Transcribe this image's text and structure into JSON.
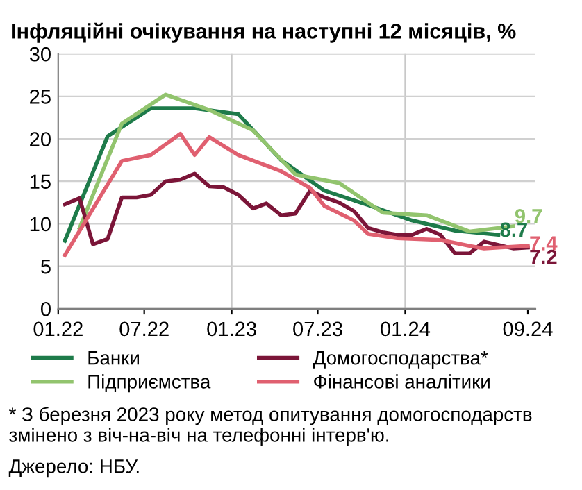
{
  "chart_data": {
    "type": "line",
    "title": "Інфляційні очікування на наступні 12 місяців, %",
    "xlim": [
      "2022-01-01",
      "2024-10-01"
    ],
    "xticks": [
      {
        "value": "2022-01-01",
        "label": "01.22"
      },
      {
        "value": "2022-07-01",
        "label": "07.22"
      },
      {
        "value": "2023-01-01",
        "label": "01.23"
      },
      {
        "value": "2023-07-01",
        "label": "07.23"
      },
      {
        "value": "2024-01-01",
        "label": "01.24"
      },
      {
        "value": "2024-09-15",
        "label": "09.24"
      }
    ],
    "ylim": [
      0,
      30
    ],
    "yticks": [
      0,
      5,
      10,
      15,
      20,
      25,
      30
    ],
    "grid": "y",
    "legend": "bottom",
    "marker": "none",
    "line_style": "solid",
    "ref_lines": [
      {
        "axis": "x",
        "value": "2023-01-01",
        "color": "#c8c8c8"
      },
      {
        "axis": "x",
        "value": "2024-01-01",
        "color": "#c8c8c8"
      }
    ],
    "series": [
      {
        "name": "Банки",
        "color": "#1e7b4a",
        "x": [
          "2022-01-15",
          "2022-04-15",
          "2022-07-15",
          "2022-10-15",
          "2023-01-15",
          "2023-04-15",
          "2023-07-15",
          "2023-10-15",
          "2024-01-15",
          "2024-04-15",
          "2024-07-15"
        ],
        "values": [
          8.0,
          20.3,
          23.6,
          23.6,
          22.9,
          17.5,
          13.9,
          12.2,
          10.4,
          9.2,
          8.7
        ]
      },
      {
        "name": "Підприємства",
        "color": "#92c46e",
        "x": [
          "2022-02-15",
          "2022-05-15",
          "2022-08-15",
          "2022-11-15",
          "2023-02-15",
          "2023-05-15",
          "2023-08-15",
          "2023-11-15",
          "2024-02-15",
          "2024-05-15",
          "2024-08-15"
        ],
        "values": [
          9.5,
          21.8,
          25.2,
          23.4,
          21.0,
          15.8,
          14.8,
          11.3,
          11.0,
          9.1,
          9.7
        ]
      },
      {
        "name": "Домогосподарства*",
        "color": "#7b1538",
        "x": [
          "2022-01-15",
          "2022-02-15",
          "2022-03-15",
          "2022-04-15",
          "2022-05-15",
          "2022-06-15",
          "2022-07-15",
          "2022-08-15",
          "2022-09-15",
          "2022-10-15",
          "2022-11-15",
          "2022-12-15",
          "2023-01-15",
          "2023-02-15",
          "2023-03-15",
          "2023-04-15",
          "2023-05-15",
          "2023-06-15",
          "2023-07-15",
          "2023-08-15",
          "2023-09-15",
          "2023-10-15",
          "2023-11-15",
          "2023-12-15",
          "2024-01-15",
          "2024-02-15",
          "2024-03-15",
          "2024-04-15",
          "2024-05-15",
          "2024-06-15",
          "2024-07-15",
          "2024-08-15",
          "2024-09-15"
        ],
        "values": [
          12.3,
          13.0,
          7.6,
          8.2,
          13.1,
          13.1,
          13.4,
          15.0,
          15.2,
          15.9,
          14.4,
          14.3,
          13.4,
          11.8,
          12.4,
          11.0,
          11.2,
          13.9,
          13.1,
          12.5,
          11.5,
          9.5,
          9.0,
          8.7,
          8.7,
          9.4,
          8.7,
          6.5,
          6.5,
          7.9,
          7.5,
          7.1,
          7.2
        ]
      },
      {
        "name": "Фінансові аналітики",
        "color": "#e06070",
        "x": [
          "2022-01-15",
          "2022-05-15",
          "2022-07-15",
          "2022-09-15",
          "2022-10-15",
          "2022-11-15",
          "2023-01-15",
          "2023-04-15",
          "2023-06-15",
          "2023-07-15",
          "2023-09-15",
          "2023-10-15",
          "2023-12-15",
          "2024-03-15",
          "2024-05-15",
          "2024-06-15",
          "2024-09-15"
        ],
        "values": [
          6.3,
          17.4,
          18.1,
          20.6,
          18.1,
          20.2,
          18.1,
          16.2,
          14.2,
          12.1,
          10.4,
          8.8,
          8.3,
          8.1,
          7.4,
          7.1,
          7.4
        ]
      }
    ],
    "annotations": [
      {
        "text": "9.7",
        "x": "2024-08-15",
        "y": 9.7
      },
      {
        "text": "8.7",
        "x": "2024-07-15",
        "y": 8.7
      },
      {
        "text": "7.4",
        "x": "2024-09-15",
        "y": 7.4
      },
      {
        "text": "7.2",
        "x": "2024-09-15",
        "y": 7.2
      },
      "* З березня 2023 року метод опитування домогосподарств змінено з віч-на-віч на телефонні інтерв'ю.",
      "Джерело: НБУ."
    ]
  }
}
